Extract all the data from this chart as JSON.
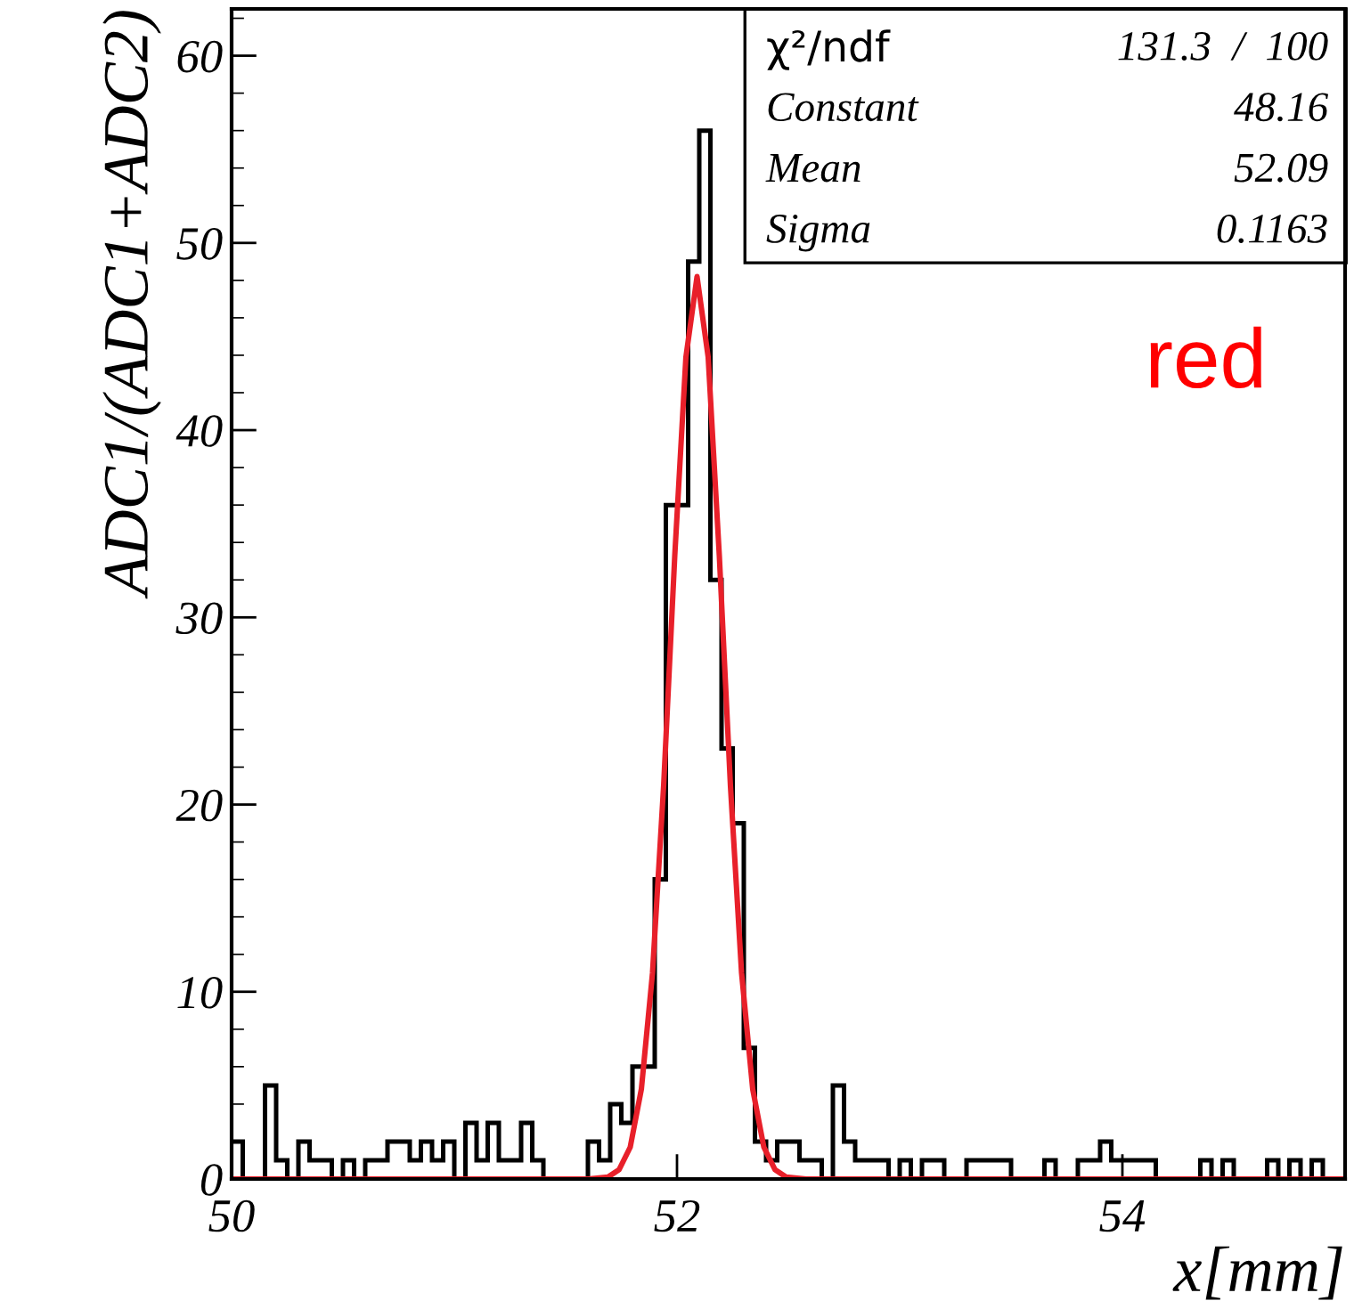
{
  "chart_data": {
    "type": "histogram",
    "xlabel": "x[mm]",
    "ylabel": "ADC1/(ADC1+ADC2)",
    "xlim": [
      50,
      55
    ],
    "ylim": [
      0,
      62.5
    ],
    "xticks": [
      50,
      52,
      54
    ],
    "yticks": [
      0,
      10,
      20,
      30,
      40,
      50,
      60
    ],
    "grid": false,
    "legend": false,
    "series": [
      {
        "color": "#000000",
        "bins": [
          50,
          50.05,
          50.1,
          50.15,
          50.2,
          50.25,
          50.3,
          50.35,
          50.4,
          50.45,
          50.5,
          50.55,
          50.6,
          50.65,
          50.7,
          50.75,
          50.8,
          50.85,
          50.9,
          50.95,
          51,
          51.05,
          51.1,
          51.15,
          51.2,
          51.25,
          51.3,
          51.35,
          51.4,
          51.45,
          51.5,
          51.55,
          51.6,
          51.65,
          51.7,
          51.75,
          51.8,
          51.85,
          51.9,
          51.95,
          52,
          52.05,
          52.1,
          52.15,
          52.2,
          52.25,
          52.3,
          52.35,
          52.4,
          52.45,
          52.5,
          52.55,
          52.6,
          52.65,
          52.7,
          52.75,
          52.8,
          52.85,
          52.9,
          52.95,
          53,
          53.05,
          53.1,
          53.15,
          53.2,
          53.25,
          53.3,
          53.35,
          53.4,
          53.45,
          53.5,
          53.55,
          53.6,
          53.65,
          53.7,
          53.75,
          53.8,
          53.85,
          53.9,
          53.95,
          54,
          54.05,
          54.1,
          54.15,
          54.2,
          54.25,
          54.3,
          54.35,
          54.4,
          54.45,
          54.5,
          54.55,
          54.6,
          54.65,
          54.7,
          54.75,
          54.8,
          54.85,
          54.9,
          54.95,
          55
        ],
        "values": [
          2,
          0,
          0,
          5,
          1,
          0,
          2,
          1,
          1,
          0,
          1,
          0,
          1,
          1,
          2,
          2,
          1,
          2,
          1,
          2,
          0,
          3,
          1,
          3,
          1,
          1,
          3,
          1,
          0,
          0,
          0,
          0,
          2,
          1,
          4,
          3,
          6,
          6,
          16,
          36,
          36,
          49,
          56,
          32,
          23,
          19,
          7,
          2,
          1,
          2,
          2,
          1,
          1,
          0,
          5,
          2,
          1,
          1,
          1,
          0,
          1,
          0,
          1,
          1,
          0,
          0,
          1,
          1,
          1,
          1,
          0,
          0,
          0,
          1,
          0,
          0,
          1,
          1,
          2,
          1,
          1,
          1,
          1,
          0,
          0,
          0,
          0,
          1,
          0,
          1,
          0,
          0,
          0,
          1,
          0,
          1,
          0,
          1,
          0,
          0
        ]
      },
      {
        "type": "line",
        "color": "#e8202a",
        "x": [
          50,
          51.6,
          51.69,
          51.74,
          51.79,
          51.84,
          51.89,
          51.94,
          51.99,
          52.04,
          52.09,
          52.14,
          52.19,
          52.24,
          52.29,
          52.34,
          52.39,
          52.44,
          52.49,
          52.58,
          55
        ],
        "values": [
          0,
          0,
          0.1,
          0.5,
          1.7,
          4.8,
          11.0,
          21.0,
          33.3,
          43.9,
          48.2,
          43.9,
          33.3,
          21.0,
          11.0,
          4.8,
          1.7,
          0.5,
          0.1,
          0,
          0
        ]
      }
    ],
    "annotations": [
      "χ²/ndf",
      "131.3  /  100",
      "Constant",
      "48.16",
      "Mean",
      "52.09",
      "Sigma",
      "0.1163",
      "red"
    ]
  }
}
